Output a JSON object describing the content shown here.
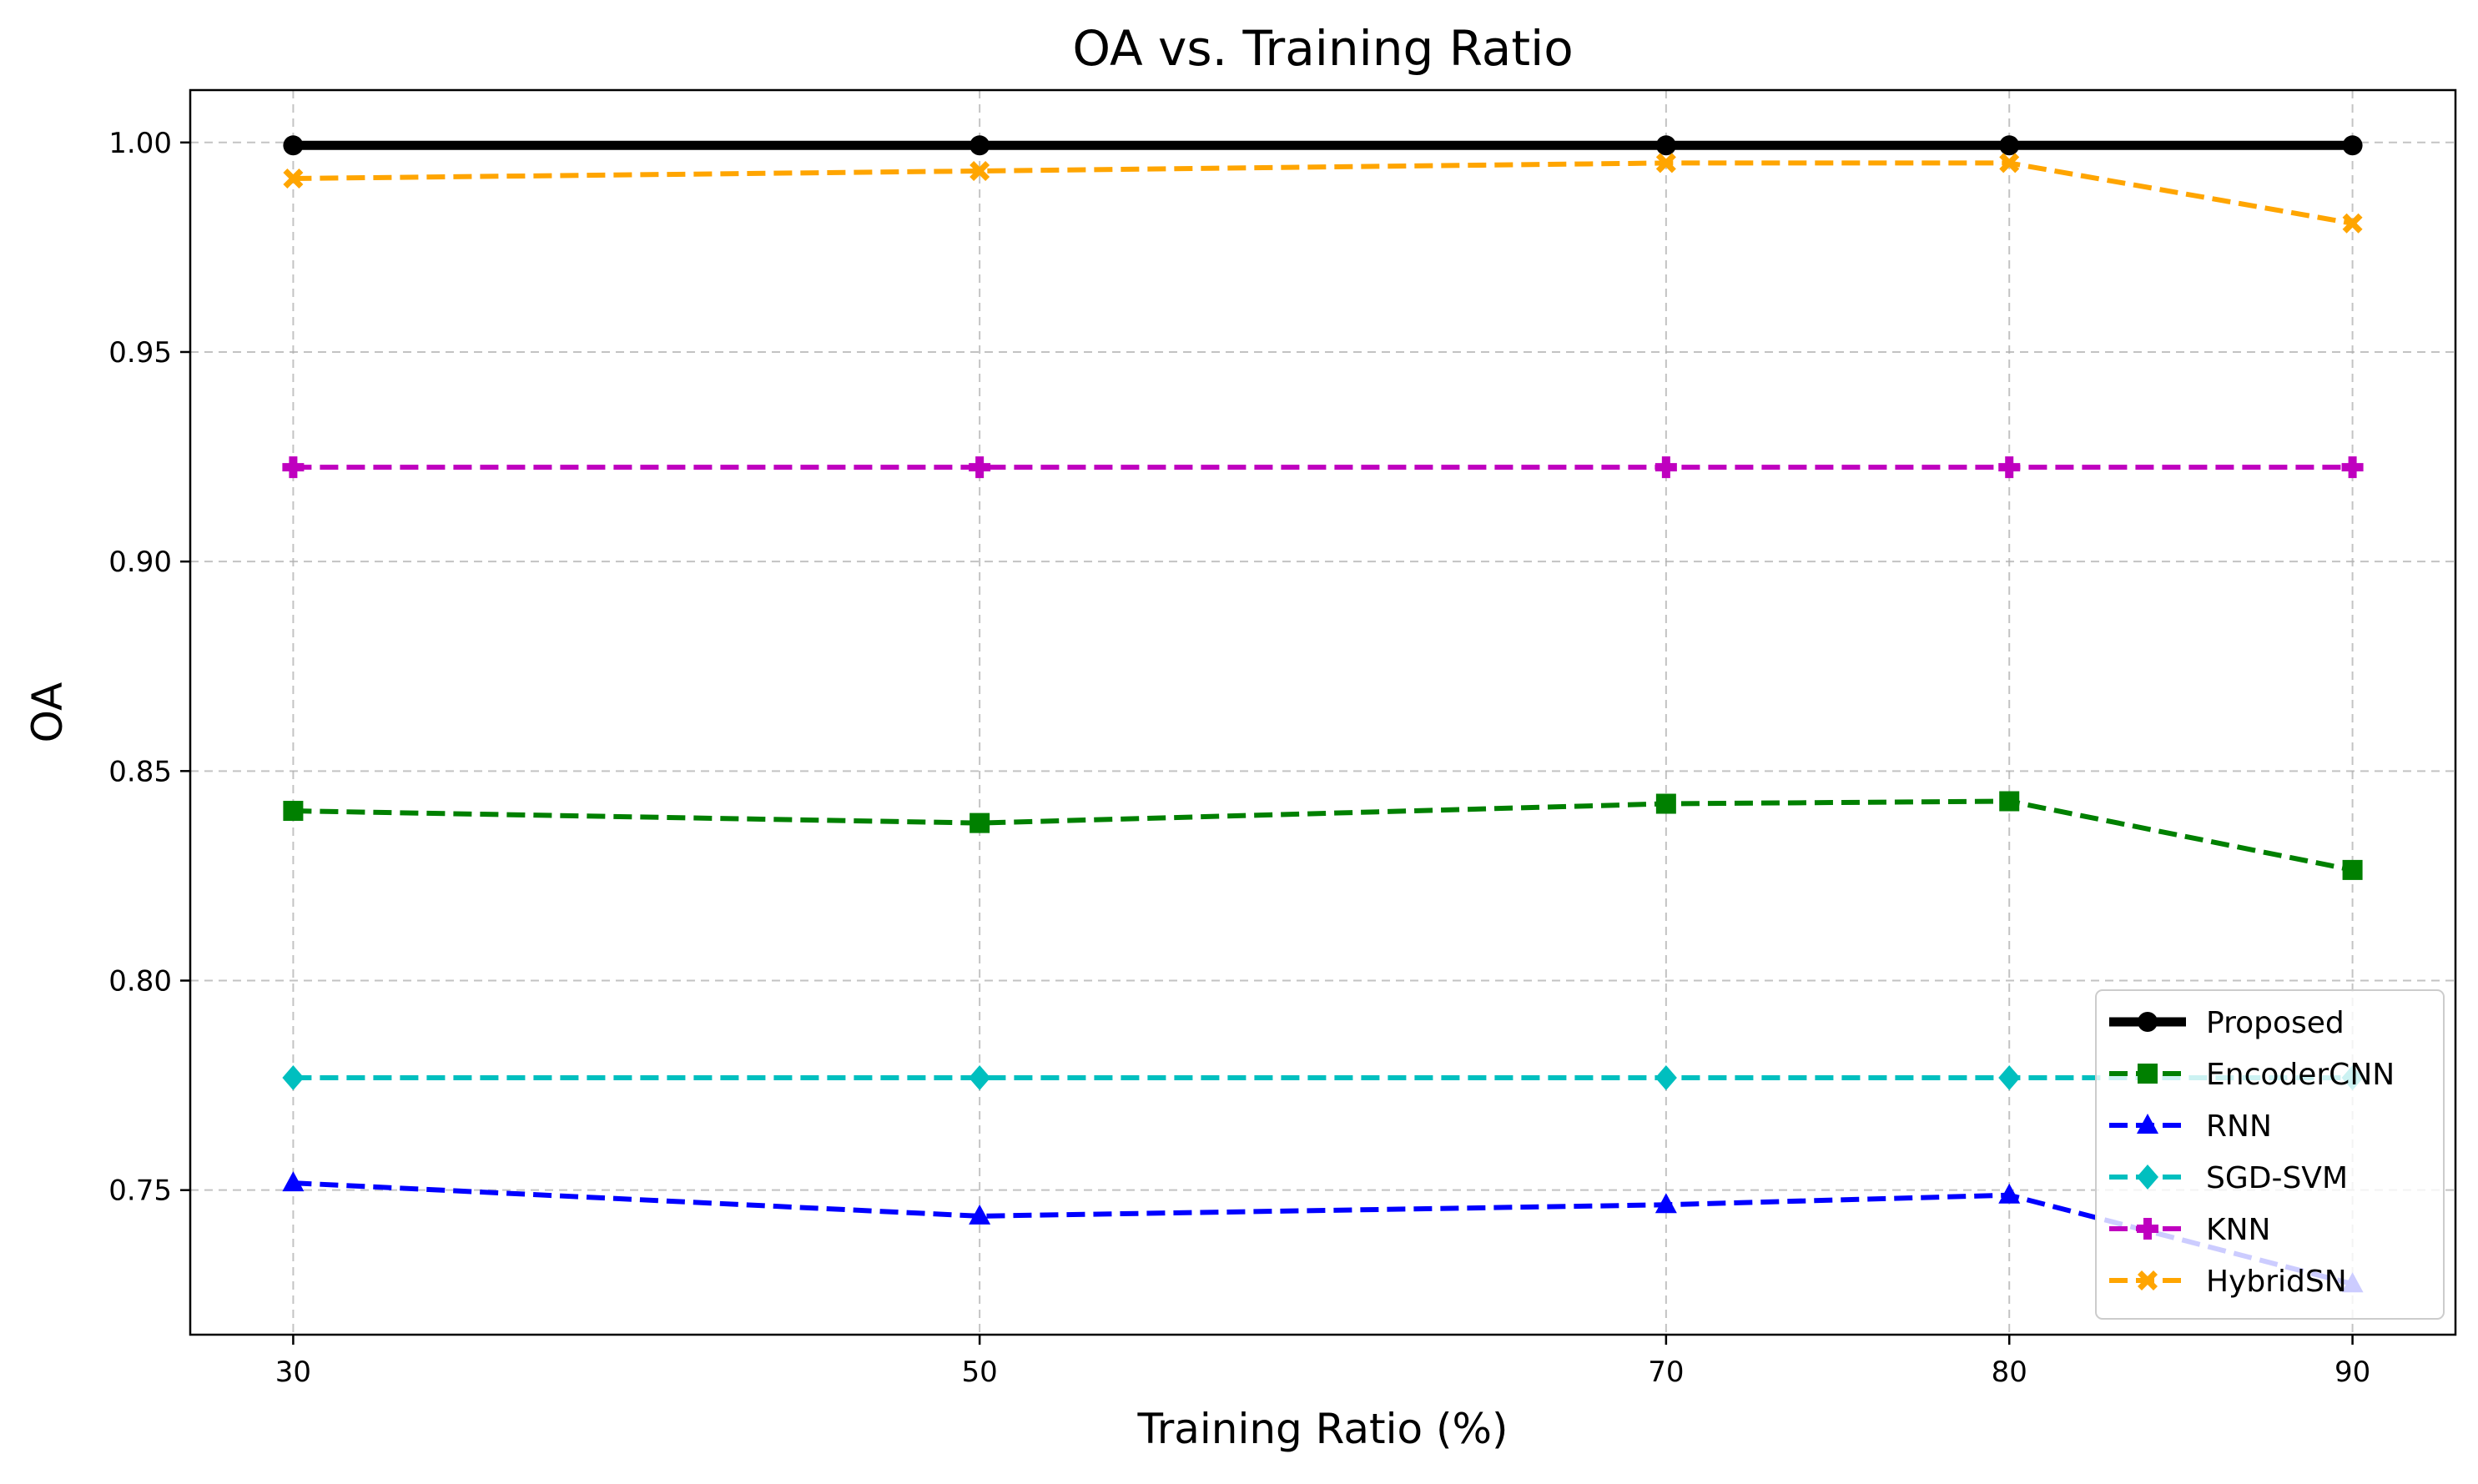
{
  "chart_data": {
    "type": "line",
    "title": "OA vs. Training Ratio",
    "xlabel": "Training Ratio (%)",
    "ylabel": "OA",
    "x": [
      30,
      50,
      70,
      80,
      90
    ],
    "x_tick_labels": [
      "30",
      "50",
      "70",
      "80",
      "90"
    ],
    "y_ticks": [
      0.75,
      0.8,
      0.85,
      0.9,
      0.95,
      1.0
    ],
    "y_tick_labels": [
      "0.75",
      "0.80",
      "0.85",
      "0.90",
      "0.95",
      "1.00"
    ],
    "xlim": [
      27,
      93
    ],
    "ylim": [
      0.7155,
      1.0125
    ],
    "grid": true,
    "legend_position": "lower-right",
    "series": [
      {
        "name": "Proposed",
        "values": [
          0.9993,
          0.9993,
          0.9993,
          0.9993,
          0.9993
        ],
        "color": "#000000",
        "line_style": "solid",
        "marker": "circle"
      },
      {
        "name": "EncoderCNN",
        "values": [
          0.8405,
          0.8376,
          0.8422,
          0.8428,
          0.8264
        ],
        "color": "#008000",
        "line_style": "dashed",
        "marker": "square"
      },
      {
        "name": "RNN",
        "values": [
          0.7517,
          0.7438,
          0.7465,
          0.7488,
          0.7276
        ],
        "color": "#0000ff",
        "line_style": "dashed",
        "marker": "triangle"
      },
      {
        "name": "SGD-SVM",
        "values": [
          0.7768,
          0.7768,
          0.7768,
          0.7768,
          0.7768
        ],
        "color": "#00bfbf",
        "line_style": "dashed",
        "marker": "diamond"
      },
      {
        "name": "KNN",
        "values": [
          0.9225,
          0.9225,
          0.9225,
          0.9225,
          0.9225
        ],
        "color": "#bf00bf",
        "line_style": "dashed",
        "marker": "plus"
      },
      {
        "name": "HybridSN",
        "values": [
          0.9914,
          0.9932,
          0.9951,
          0.9951,
          0.9807
        ],
        "color": "#ffa500",
        "line_style": "dashed",
        "marker": "x"
      }
    ]
  }
}
